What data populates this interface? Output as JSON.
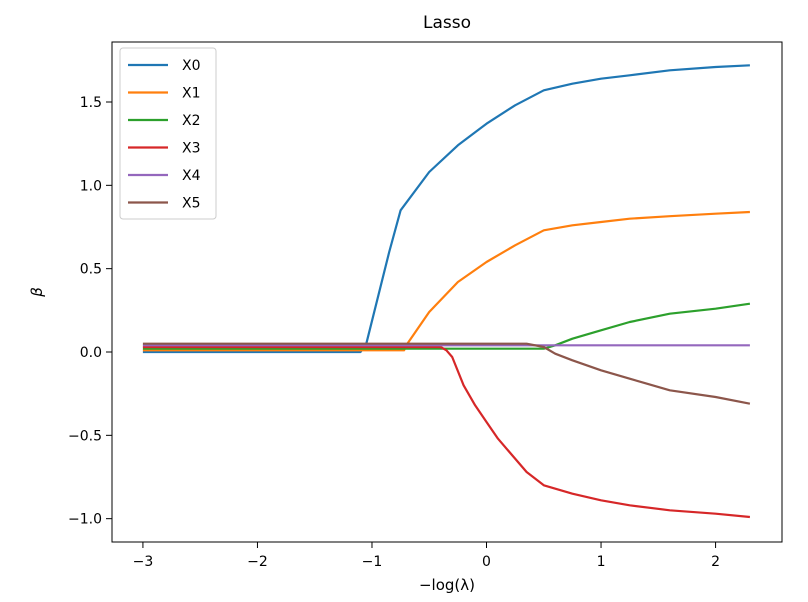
{
  "chart_data": {
    "type": "line",
    "title": "Lasso",
    "xlabel": "−log(λ)",
    "ylabel": "β",
    "xlim": [
      -3.27,
      2.58
    ],
    "ylim": [
      -1.14,
      1.86
    ],
    "xticks": [
      -3,
      -2,
      -1,
      0,
      1,
      2
    ],
    "xtick_labels": [
      "−3",
      "−2",
      "−1",
      "0",
      "1",
      "2"
    ],
    "yticks": [
      -1.0,
      -0.5,
      0.0,
      0.5,
      1.0,
      1.5
    ],
    "ytick_labels": [
      "−1.0",
      "−0.5",
      "0.0",
      "0.5",
      "1.0",
      "1.5"
    ],
    "grid": false,
    "legend_position": "top-left",
    "series": [
      {
        "name": "X0",
        "color": "#1f77b4",
        "x": [
          -3.0,
          -1.1,
          -1.05,
          -0.85,
          -0.75,
          -0.5,
          -0.25,
          0.0,
          0.25,
          0.5,
          0.75,
          1.0,
          1.25,
          1.6,
          2.0,
          2.3
        ],
        "y": [
          0.0,
          0.0,
          0.05,
          0.6,
          0.85,
          1.08,
          1.24,
          1.37,
          1.48,
          1.57,
          1.61,
          1.64,
          1.66,
          1.69,
          1.71,
          1.72
        ]
      },
      {
        "name": "X1",
        "color": "#ff7f0e",
        "x": [
          -3.0,
          -0.72,
          -0.7,
          -0.5,
          -0.25,
          0.0,
          0.25,
          0.5,
          0.75,
          1.0,
          1.25,
          1.6,
          2.0,
          2.3
        ],
        "y": [
          0.01,
          0.01,
          0.04,
          0.24,
          0.42,
          0.54,
          0.64,
          0.73,
          0.76,
          0.78,
          0.8,
          0.815,
          0.83,
          0.84
        ]
      },
      {
        "name": "X2",
        "color": "#2ca02c",
        "x": [
          -3.0,
          0.5,
          0.6,
          0.75,
          1.0,
          1.25,
          1.6,
          2.0,
          2.3
        ],
        "y": [
          0.02,
          0.02,
          0.04,
          0.08,
          0.13,
          0.18,
          0.23,
          0.26,
          0.29
        ]
      },
      {
        "name": "X3",
        "color": "#d62728",
        "x": [
          -3.0,
          -0.4,
          -0.35,
          -0.3,
          -0.2,
          -0.1,
          0.0,
          0.1,
          0.2,
          0.35,
          0.5,
          0.75,
          1.0,
          1.25,
          1.6,
          2.0,
          2.3
        ],
        "y": [
          0.03,
          0.03,
          0.01,
          -0.03,
          -0.2,
          -0.32,
          -0.42,
          -0.52,
          -0.6,
          -0.72,
          -0.8,
          -0.85,
          -0.89,
          -0.92,
          -0.95,
          -0.97,
          -0.99
        ]
      },
      {
        "name": "X4",
        "color": "#9467bd",
        "x": [
          -3.0,
          2.3
        ],
        "y": [
          0.04,
          0.04
        ]
      },
      {
        "name": "X5",
        "color": "#8c564b",
        "x": [
          -3.0,
          0.35,
          0.5,
          0.6,
          0.75,
          1.0,
          1.25,
          1.6,
          2.0,
          2.3
        ],
        "y": [
          0.05,
          0.05,
          0.03,
          -0.01,
          -0.05,
          -0.11,
          -0.16,
          -0.23,
          -0.27,
          -0.31
        ]
      }
    ]
  }
}
